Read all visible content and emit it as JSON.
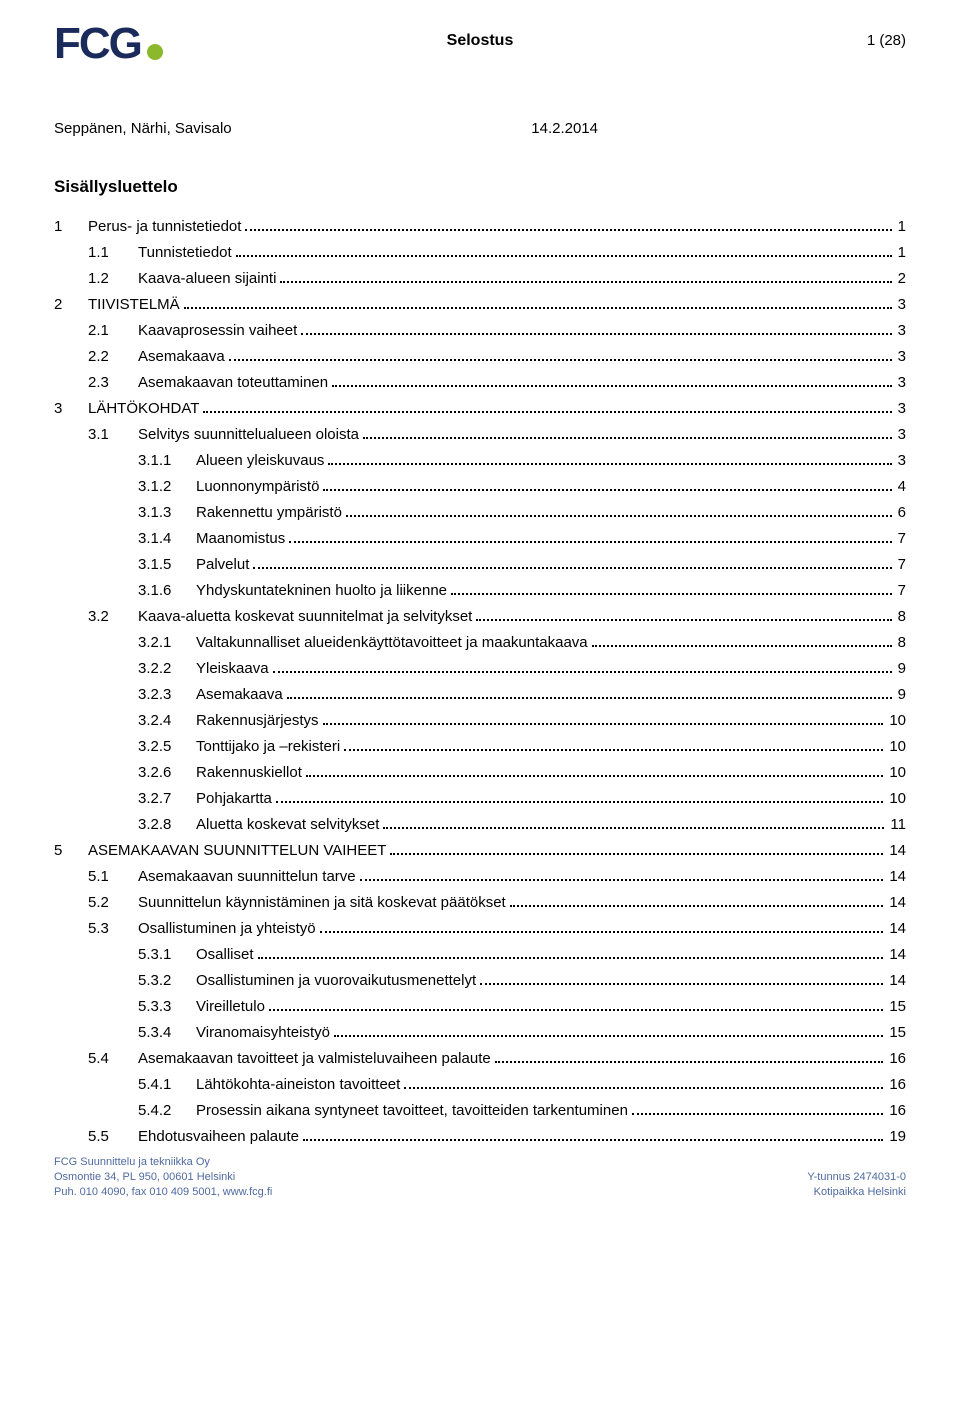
{
  "header": {
    "logo_text": "FCG",
    "doc_type": "Selostus",
    "page_indicator": "1 (28)",
    "authors": "Seppänen, Närhi, Savisalo",
    "date": "14.2.2014"
  },
  "toc": {
    "title": "Sisällysluettelo",
    "entries": [
      {
        "level": 1,
        "num": "1",
        "label": "Perus- ja tunnistetiedot",
        "page": "1"
      },
      {
        "level": 2,
        "num": "1.1",
        "label": "Tunnistetiedot",
        "page": "1"
      },
      {
        "level": 2,
        "num": "1.2",
        "label": "Kaava-alueen sijainti",
        "page": "2"
      },
      {
        "level": 1,
        "num": "2",
        "label": "TIIVISTELMÄ",
        "page": "3"
      },
      {
        "level": 2,
        "num": "2.1",
        "label": "Kaavaprosessin vaiheet",
        "page": "3"
      },
      {
        "level": 2,
        "num": "2.2",
        "label": "Asemakaava",
        "page": "3"
      },
      {
        "level": 2,
        "num": "2.3",
        "label": "Asemakaavan toteuttaminen",
        "page": "3"
      },
      {
        "level": 1,
        "num": "3",
        "label": "LÄHTÖKOHDAT",
        "page": "3"
      },
      {
        "level": 2,
        "num": "3.1",
        "label": "Selvitys suunnittelualueen oloista",
        "page": "3"
      },
      {
        "level": 3,
        "num": "3.1.1",
        "label": "Alueen yleiskuvaus",
        "page": "3"
      },
      {
        "level": 3,
        "num": "3.1.2",
        "label": "Luonnonympäristö",
        "page": "4"
      },
      {
        "level": 3,
        "num": "3.1.3",
        "label": "Rakennettu ympäristö",
        "page": "6"
      },
      {
        "level": 3,
        "num": "3.1.4",
        "label": "Maanomistus",
        "page": "7"
      },
      {
        "level": 3,
        "num": "3.1.5",
        "label": "Palvelut",
        "page": "7"
      },
      {
        "level": 3,
        "num": "3.1.6",
        "label": "Yhdyskuntatekninen huolto ja liikenne",
        "page": "7"
      },
      {
        "level": 2,
        "num": "3.2",
        "label": "Kaava-aluetta koskevat suunnitelmat ja selvitykset",
        "page": "8"
      },
      {
        "level": 3,
        "num": "3.2.1",
        "label": "Valtakunnalliset alueidenkäyttötavoitteet ja maakuntakaava",
        "page": "8"
      },
      {
        "level": 3,
        "num": "3.2.2",
        "label": "Yleiskaava",
        "page": "9"
      },
      {
        "level": 3,
        "num": "3.2.3",
        "label": "Asemakaava",
        "page": "9"
      },
      {
        "level": 3,
        "num": "3.2.4",
        "label": "Rakennusjärjestys",
        "page": "10"
      },
      {
        "level": 3,
        "num": "3.2.5",
        "label": "Tonttijako ja –rekisteri",
        "page": "10"
      },
      {
        "level": 3,
        "num": "3.2.6",
        "label": "Rakennuskiellot",
        "page": "10"
      },
      {
        "level": 3,
        "num": "3.2.7",
        "label": "Pohjakartta",
        "page": "10"
      },
      {
        "level": 3,
        "num": "3.2.8",
        "label": "Aluetta koskevat selvitykset",
        "page": "11"
      },
      {
        "level": 1,
        "num": "5",
        "label": "ASEMAKAAVAN SUUNNITTELUN VAIHEET",
        "page": "14"
      },
      {
        "level": 2,
        "num": "5.1",
        "label": "Asemakaavan suunnittelun tarve",
        "page": "14"
      },
      {
        "level": 2,
        "num": "5.2",
        "label": "Suunnittelun käynnistäminen ja sitä koskevat päätökset",
        "page": "14"
      },
      {
        "level": 2,
        "num": "5.3",
        "label": "Osallistuminen ja yhteistyö",
        "page": "14"
      },
      {
        "level": 3,
        "num": "5.3.1",
        "label": "Osalliset",
        "page": "14"
      },
      {
        "level": 3,
        "num": "5.3.2",
        "label": "Osallistuminen ja vuorovaikutusmenettelyt",
        "page": "14"
      },
      {
        "level": 3,
        "num": "5.3.3",
        "label": "Vireilletulo",
        "page": "15"
      },
      {
        "level": 3,
        "num": "5.3.4",
        "label": "Viranomaisyhteistyö",
        "page": "15"
      },
      {
        "level": 2,
        "num": "5.4",
        "label": "Asemakaavan tavoitteet ja valmisteluvaiheen palaute",
        "page": "16"
      },
      {
        "level": 3,
        "num": "5.4.1",
        "label": "Lähtökohta-aineiston tavoitteet",
        "page": "16"
      },
      {
        "level": 3,
        "num": "5.4.2",
        "label": "Prosessin aikana syntyneet tavoitteet, tavoitteiden tarkentuminen",
        "page": "16"
      },
      {
        "level": 2,
        "num": "5.5",
        "label": "Ehdotusvaiheen palaute",
        "page": "19"
      }
    ]
  },
  "footer": {
    "company": "FCG Suunnittelu ja tekniikka Oy",
    "address": "Osmontie 34, PL 950, 00601 Helsinki",
    "contact": "Puh. 010 4090, fax 010 409 5001, www.fcg.fi",
    "ytunnus": "Y-tunnus 2474031-0",
    "kotipaikka": "Kotipaikka Helsinki"
  },
  "colors": {
    "logo_text": "#1a2a5a",
    "logo_dot": "#8cb82b",
    "footer_text": "#4f6aa0",
    "body_text": "#000000",
    "background": "#ffffff"
  }
}
